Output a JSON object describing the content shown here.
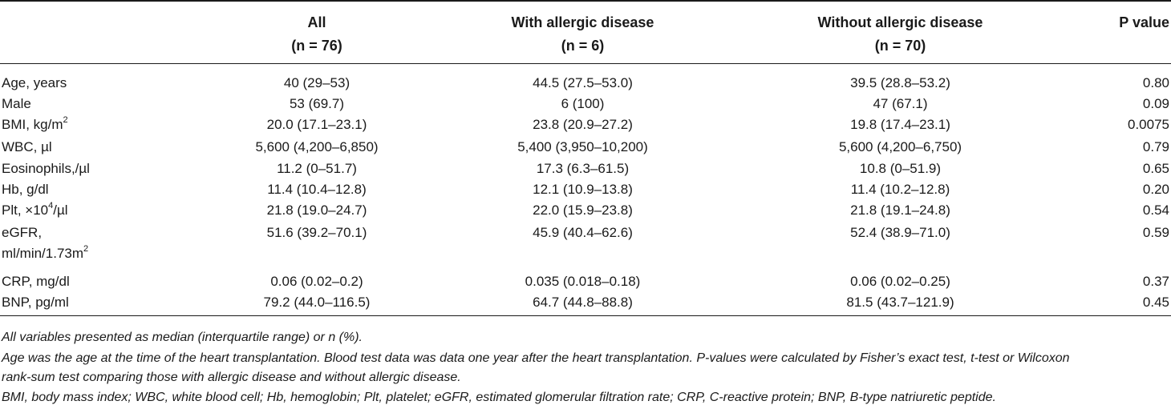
{
  "header": {
    "col1": {
      "title": "All",
      "n": "(n = 76)"
    },
    "col2": {
      "title": "With allergic disease",
      "n": "(n = 6)"
    },
    "col3": {
      "title": "Without allergic disease",
      "n": "(n = 70)"
    },
    "col4": {
      "title": "P value"
    }
  },
  "rows": [
    {
      "label": "Age, years",
      "all": "40 (29–53)",
      "with": "44.5 (27.5–53.0)",
      "without": "39.5 (28.8–53.2)",
      "p": "0.80"
    },
    {
      "label": "Male",
      "all": "53 (69.7)",
      "with": "6 (100)",
      "without": "47 (67.1)",
      "p": "0.09"
    },
    {
      "label": "BMI, kg/m",
      "label_sup": "2",
      "all": "20.0 (17.1–23.1)",
      "with": "23.8 (20.9–27.2)",
      "without": "19.8 (17.4–23.1)",
      "p": "0.0075"
    },
    {
      "label": "WBC, µl",
      "all": "5,600 (4,200–6,850)",
      "with": "5,400 (3,950–10,200)",
      "without": "5,600 (4,200–6,750)",
      "p": "0.79"
    },
    {
      "label": "Eosinophils,/µl",
      "all": "11.2 (0–51.7)",
      "with": "17.3 (6.3–61.5)",
      "without": "10.8 (0–51.9)",
      "p": "0.65"
    },
    {
      "label": "Hb, g/dl",
      "all": "11.4 (10.4–12.8)",
      "with": "12.1 (10.9–13.8)",
      "without": "11.4 (10.2–12.8)",
      "p": "0.20"
    },
    {
      "label": "Plt, ×10",
      "label_sup": "4",
      "label_after": "/µl",
      "all": "21.8 (19.0–24.7)",
      "with": "22.0 (15.9–23.8)",
      "without": "21.8 (19.1–24.8)",
      "p": "0.54"
    },
    {
      "label": "eGFR,",
      "label_line2": "ml/min/1.73m",
      "label_line2_sup": "2",
      "all": "51.6 (39.2–70.1)",
      "with": "45.9 (40.4–62.6)",
      "without": "52.4 (38.9–71.0)",
      "p": "0.59"
    },
    {
      "label": "CRP, mg/dl",
      "all": "0.06 (0.02–0.2)",
      "with": "0.035 (0.018–0.18)",
      "without": "0.06 (0.02–0.25)",
      "p": "0.37"
    },
    {
      "label": "BNP, pg/ml",
      "all": "79.2 (44.0–116.5)",
      "with": "64.7 (44.8–88.8)",
      "without": "81.5 (43.7–121.9)",
      "p": "0.45"
    }
  ],
  "footnotes": {
    "line1": "All variables presented as median (interquartile range) or n (%).",
    "line2": "Age was the age at the time of the heart transplantation. Blood test data was data one year after the heart transplantation. P-values were calculated by Fisher’s exact test, t-test or Wilcoxon",
    "line3": "rank-sum test comparing those with allergic disease and without allergic disease.",
    "line4": "BMI, body mass index; WBC, white blood cell; Hb, hemoglobin; Plt, platelet; eGFR, estimated glomerular filtration rate; CRP, C-reactive protein; BNP, B-type natriuretic peptide."
  }
}
